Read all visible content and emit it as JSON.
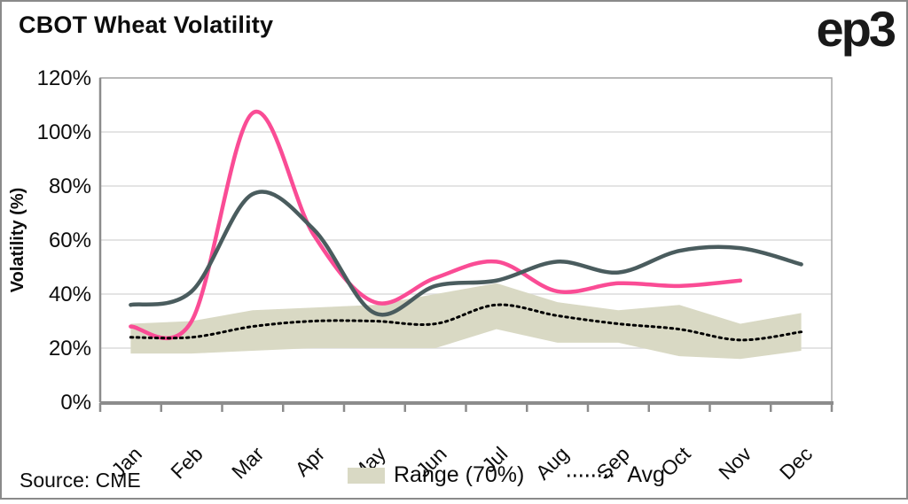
{
  "header": {
    "title": "CBOT Wheat Volatility",
    "logo": "ep3"
  },
  "footer": {
    "source": "Source: CME"
  },
  "legend": [
    {
      "label": "Range (70%)",
      "marker": "band-swatch"
    },
    {
      "label": "Avg",
      "marker": "dotted-line"
    }
  ],
  "colors": {
    "pink_line": "#fa4c95",
    "dark_line": "#4a5c5e",
    "band": "#d9d9c4",
    "avg_line": "#000000",
    "gridline": "#dcdcdc",
    "axis": "#8c8c8c",
    "frame": "#a6a6a6",
    "text": "#0d0d0d"
  },
  "chart_data": {
    "type": "line",
    "title": "CBOT Wheat Volatility",
    "xlabel": "",
    "ylabel": "Volatility (%)",
    "ylim": [
      0,
      120
    ],
    "y_ticks": [
      "0%",
      "20%",
      "40%",
      "60%",
      "80%",
      "100%",
      "120%"
    ],
    "grid": true,
    "legend_position": "bottom",
    "categories": [
      "Jan",
      "Feb",
      "Mar",
      "Apr",
      "May",
      "Jun",
      "Jul",
      "Aug",
      "Sep",
      "Oct",
      "Nov",
      "Dec"
    ],
    "band": {
      "label": "Range (70%)",
      "color": "#d9d9c4",
      "upper": [
        29,
        30,
        34,
        35,
        36,
        40,
        44,
        37,
        34,
        36,
        29,
        33
      ],
      "lower": [
        18,
        18,
        19,
        20,
        20,
        20,
        27,
        22,
        22,
        17,
        16,
        19
      ]
    },
    "series": [
      {
        "id": "volatility-line-pink",
        "color": "#fa4c95",
        "style": "solid",
        "smooth": true,
        "values": [
          28,
          30,
          107,
          62,
          37,
          46,
          52,
          41,
          44,
          43,
          45,
          null
        ]
      },
      {
        "id": "volatility-line-dark",
        "color": "#4a5c5e",
        "style": "solid",
        "smooth": true,
        "values": [
          36,
          41,
          77,
          64,
          33,
          43,
          45,
          52,
          48,
          56,
          57,
          51
        ]
      },
      {
        "id": "average-line",
        "label": "Avg",
        "color": "#000000",
        "style": "dotted",
        "smooth": true,
        "values": [
          24,
          24,
          28,
          30,
          30,
          29,
          36,
          32,
          29,
          27,
          23,
          26
        ]
      }
    ]
  }
}
